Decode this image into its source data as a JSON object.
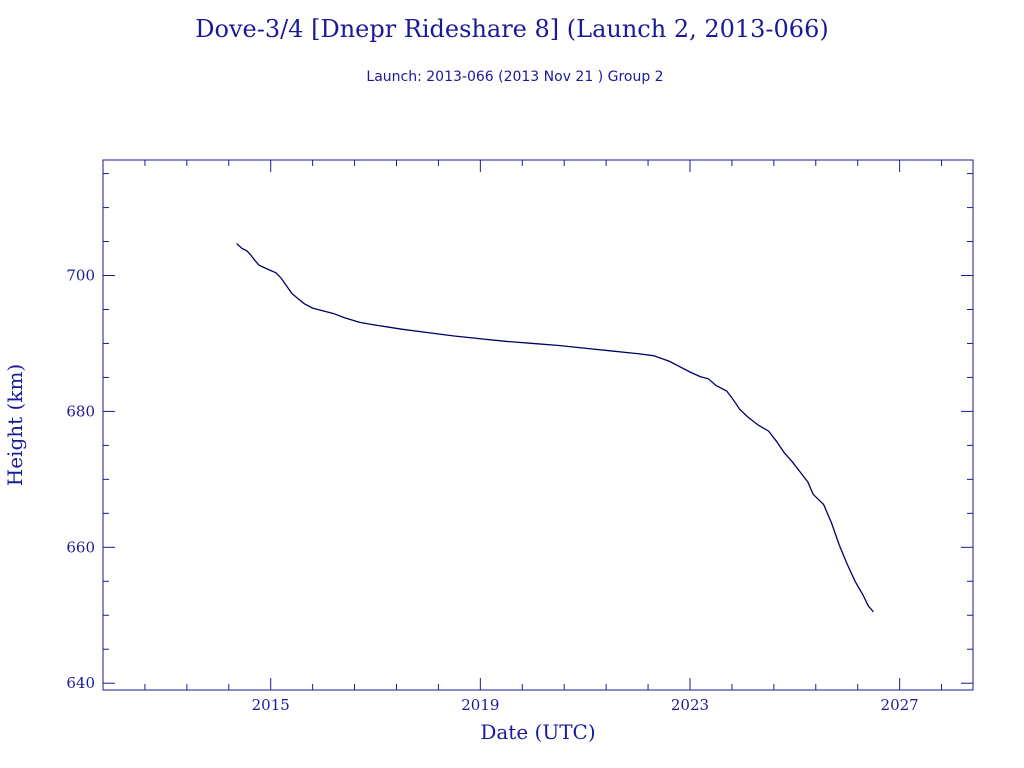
{
  "chart_data": {
    "type": "line",
    "title": "Dove-3/4 [Dnepr Rideshare 8] (Launch 2, 2013-066)",
    "subtitle": "Launch: 2013-066  (2013 Nov 21 )  Group 2",
    "xlabel": "Date (UTC)",
    "ylabel": "Height (km)",
    "xlim": [
      2011.8,
      2028.4
    ],
    "ylim": [
      639,
      717
    ],
    "x_ticks": [
      2015,
      2019,
      2023,
      2027
    ],
    "y_ticks": [
      640,
      660,
      680,
      700
    ],
    "x_minor_step": 0.8,
    "y_minor_step": 5,
    "grid": false,
    "series": [
      {
        "values": [
          [
            2014.35,
            704.7
          ],
          [
            2014.45,
            704.0
          ],
          [
            2014.55,
            703.6
          ],
          [
            2014.62,
            703.0
          ],
          [
            2014.7,
            702.2
          ],
          [
            2014.78,
            701.5
          ],
          [
            2014.95,
            700.9
          ],
          [
            2015.1,
            700.4
          ],
          [
            2015.2,
            699.6
          ],
          [
            2015.3,
            698.5
          ],
          [
            2015.4,
            697.4
          ],
          [
            2015.52,
            696.6
          ],
          [
            2015.65,
            695.8
          ],
          [
            2015.8,
            695.2
          ],
          [
            2016.0,
            694.8
          ],
          [
            2016.2,
            694.4
          ],
          [
            2016.4,
            693.8
          ],
          [
            2016.7,
            693.1
          ],
          [
            2017.0,
            692.7
          ],
          [
            2017.5,
            692.1
          ],
          [
            2018.0,
            691.6
          ],
          [
            2018.5,
            691.1
          ],
          [
            2019.0,
            690.7
          ],
          [
            2019.5,
            690.3
          ],
          [
            2020.0,
            690.0
          ],
          [
            2020.5,
            689.7
          ],
          [
            2021.0,
            689.3
          ],
          [
            2021.5,
            688.9
          ],
          [
            2022.0,
            688.5
          ],
          [
            2022.3,
            688.2
          ],
          [
            2022.6,
            687.4
          ],
          [
            2022.8,
            686.6
          ],
          [
            2023.0,
            685.8
          ],
          [
            2023.2,
            685.1
          ],
          [
            2023.35,
            684.8
          ],
          [
            2023.5,
            683.8
          ],
          [
            2023.7,
            683.0
          ],
          [
            2023.8,
            682.0
          ],
          [
            2023.95,
            680.3
          ],
          [
            2024.1,
            679.2
          ],
          [
            2024.3,
            678.0
          ],
          [
            2024.5,
            677.1
          ],
          [
            2024.65,
            675.6
          ],
          [
            2024.8,
            673.9
          ],
          [
            2024.95,
            672.6
          ],
          [
            2025.1,
            671.1
          ],
          [
            2025.25,
            669.6
          ],
          [
            2025.35,
            667.8
          ],
          [
            2025.55,
            666.3
          ],
          [
            2025.7,
            663.6
          ],
          [
            2025.85,
            660.3
          ],
          [
            2026.0,
            657.5
          ],
          [
            2026.15,
            655.0
          ],
          [
            2026.3,
            653.0
          ],
          [
            2026.4,
            651.4
          ],
          [
            2026.5,
            650.5
          ]
        ]
      }
    ]
  },
  "colors": {
    "ink": "#1a1a99",
    "line": "#000066",
    "background": "#ffffff"
  }
}
